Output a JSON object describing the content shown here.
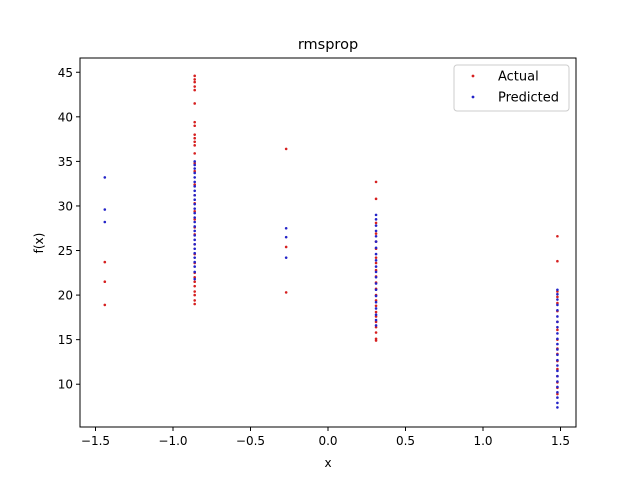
{
  "chart_data": {
    "type": "scatter",
    "title": "rmsprop",
    "xlabel": "x",
    "ylabel": "f(x)",
    "xlim": [
      -1.6,
      1.6
    ],
    "ylim": [
      5.2,
      46.6
    ],
    "xticks": [
      "−1.5",
      "−1.0",
      "−0.5",
      "0.0",
      "0.5",
      "1.0",
      "1.5"
    ],
    "xtick_values": [
      -1.5,
      -1.0,
      -0.5,
      0.0,
      0.5,
      1.0,
      1.5
    ],
    "yticks": [
      "10",
      "15",
      "20",
      "25",
      "30",
      "35",
      "40",
      "45"
    ],
    "ytick_values": [
      10,
      15,
      20,
      25,
      30,
      35,
      40,
      45
    ],
    "grid": false,
    "legend_position": "top-right",
    "series": [
      {
        "name": "Actual",
        "color": "#d62020",
        "marker": "dot",
        "points": [
          [
            -1.44,
            23.7
          ],
          [
            -1.44,
            21.5
          ],
          [
            -1.44,
            18.9
          ],
          [
            -0.86,
            44.6
          ],
          [
            -0.86,
            44.2
          ],
          [
            -0.86,
            43.9
          ],
          [
            -0.86,
            43.4
          ],
          [
            -0.86,
            43.0
          ],
          [
            -0.86,
            41.5
          ],
          [
            -0.86,
            39.4
          ],
          [
            -0.86,
            39.0
          ],
          [
            -0.86,
            38.0
          ],
          [
            -0.86,
            37.6
          ],
          [
            -0.86,
            37.2
          ],
          [
            -0.86,
            36.8
          ],
          [
            -0.86,
            35.9
          ],
          [
            -0.86,
            34.8
          ],
          [
            -0.86,
            33.9
          ],
          [
            -0.86,
            32.4
          ],
          [
            -0.86,
            31.2
          ],
          [
            -0.86,
            30.3
          ],
          [
            -0.86,
            29.4
          ],
          [
            -0.86,
            28.5
          ],
          [
            -0.86,
            27.6
          ],
          [
            -0.86,
            26.8
          ],
          [
            -0.86,
            25.7
          ],
          [
            -0.86,
            24.6
          ],
          [
            -0.86,
            23.6
          ],
          [
            -0.86,
            22.5
          ],
          [
            -0.86,
            22.0
          ],
          [
            -0.86,
            21.5
          ],
          [
            -0.86,
            21.0
          ],
          [
            -0.86,
            20.4
          ],
          [
            -0.86,
            20.0
          ],
          [
            -0.86,
            19.4
          ],
          [
            -0.86,
            19.0
          ],
          [
            -0.27,
            36.4
          ],
          [
            -0.27,
            25.4
          ],
          [
            -0.27,
            20.3
          ],
          [
            0.31,
            32.7
          ],
          [
            0.31,
            30.8
          ],
          [
            0.31,
            28.1
          ],
          [
            0.31,
            26.9
          ],
          [
            0.31,
            26.0
          ],
          [
            0.31,
            25.2
          ],
          [
            0.31,
            24.2
          ],
          [
            0.31,
            23.6
          ],
          [
            0.31,
            22.8
          ],
          [
            0.31,
            22.1
          ],
          [
            0.31,
            21.4
          ],
          [
            0.31,
            20.7
          ],
          [
            0.31,
            20.0
          ],
          [
            0.31,
            19.4
          ],
          [
            0.31,
            18.8
          ],
          [
            0.31,
            18.1
          ],
          [
            0.31,
            17.6
          ],
          [
            0.31,
            17.0
          ],
          [
            0.31,
            16.4
          ],
          [
            0.31,
            15.8
          ],
          [
            0.31,
            15.1
          ],
          [
            0.31,
            14.9
          ],
          [
            1.48,
            26.6
          ],
          [
            1.48,
            23.8
          ],
          [
            1.48,
            20.4
          ],
          [
            1.48,
            19.8
          ],
          [
            1.48,
            19.1
          ],
          [
            1.48,
            18.2
          ],
          [
            1.48,
            17.0
          ],
          [
            1.48,
            16.1
          ],
          [
            1.48,
            15.0
          ],
          [
            1.48,
            14.0
          ],
          [
            1.48,
            13.4
          ],
          [
            1.48,
            12.6
          ],
          [
            1.48,
            11.7
          ],
          [
            1.48,
            10.9
          ],
          [
            1.48,
            10.2
          ],
          [
            1.48,
            9.6
          ],
          [
            1.48,
            8.9
          ]
        ]
      },
      {
        "name": "Predicted",
        "color": "#2424c8",
        "marker": "dot",
        "points": [
          [
            -1.44,
            33.2
          ],
          [
            -1.44,
            29.6
          ],
          [
            -1.44,
            28.2
          ],
          [
            -0.86,
            35.0
          ],
          [
            -0.86,
            34.6
          ],
          [
            -0.86,
            34.2
          ],
          [
            -0.86,
            33.7
          ],
          [
            -0.86,
            33.2
          ],
          [
            -0.86,
            32.7
          ],
          [
            -0.86,
            32.2
          ],
          [
            -0.86,
            31.7
          ],
          [
            -0.86,
            31.2
          ],
          [
            -0.86,
            30.7
          ],
          [
            -0.86,
            30.2
          ],
          [
            -0.86,
            29.7
          ],
          [
            -0.86,
            29.2
          ],
          [
            -0.86,
            28.7
          ],
          [
            -0.86,
            28.2
          ],
          [
            -0.86,
            27.7
          ],
          [
            -0.86,
            27.2
          ],
          [
            -0.86,
            26.7
          ],
          [
            -0.86,
            26.2
          ],
          [
            -0.86,
            25.7
          ],
          [
            -0.86,
            25.2
          ],
          [
            -0.86,
            24.7
          ],
          [
            -0.86,
            24.2
          ],
          [
            -0.86,
            23.7
          ],
          [
            -0.86,
            23.2
          ],
          [
            -0.86,
            22.6
          ],
          [
            -0.86,
            21.8
          ],
          [
            -0.27,
            27.5
          ],
          [
            -0.27,
            26.5
          ],
          [
            -0.27,
            24.2
          ],
          [
            0.31,
            29.0
          ],
          [
            0.31,
            28.5
          ],
          [
            0.31,
            27.8
          ],
          [
            0.31,
            27.2
          ],
          [
            0.31,
            26.6
          ],
          [
            0.31,
            26.0
          ],
          [
            0.31,
            25.3
          ],
          [
            0.31,
            24.6
          ],
          [
            0.31,
            23.9
          ],
          [
            0.31,
            23.2
          ],
          [
            0.31,
            22.6
          ],
          [
            0.31,
            22.0
          ],
          [
            0.31,
            21.3
          ],
          [
            0.31,
            20.6
          ],
          [
            0.31,
            19.9
          ],
          [
            0.31,
            19.2
          ],
          [
            0.31,
            18.5
          ],
          [
            0.31,
            17.8
          ],
          [
            0.31,
            17.2
          ],
          [
            0.31,
            16.6
          ],
          [
            1.48,
            20.6
          ],
          [
            1.48,
            20.1
          ],
          [
            1.48,
            19.5
          ],
          [
            1.48,
            18.9
          ],
          [
            1.48,
            18.3
          ],
          [
            1.48,
            17.6
          ],
          [
            1.48,
            17.0
          ],
          [
            1.48,
            16.4
          ],
          [
            1.48,
            15.7
          ],
          [
            1.48,
            15.1
          ],
          [
            1.48,
            14.5
          ],
          [
            1.48,
            13.9
          ],
          [
            1.48,
            13.3
          ],
          [
            1.48,
            12.7
          ],
          [
            1.48,
            12.1
          ],
          [
            1.48,
            11.5
          ],
          [
            1.48,
            10.9
          ],
          [
            1.48,
            10.3
          ],
          [
            1.48,
            9.7
          ],
          [
            1.48,
            9.1
          ],
          [
            1.48,
            8.5
          ],
          [
            1.48,
            7.9
          ],
          [
            1.48,
            7.4
          ]
        ]
      }
    ]
  }
}
